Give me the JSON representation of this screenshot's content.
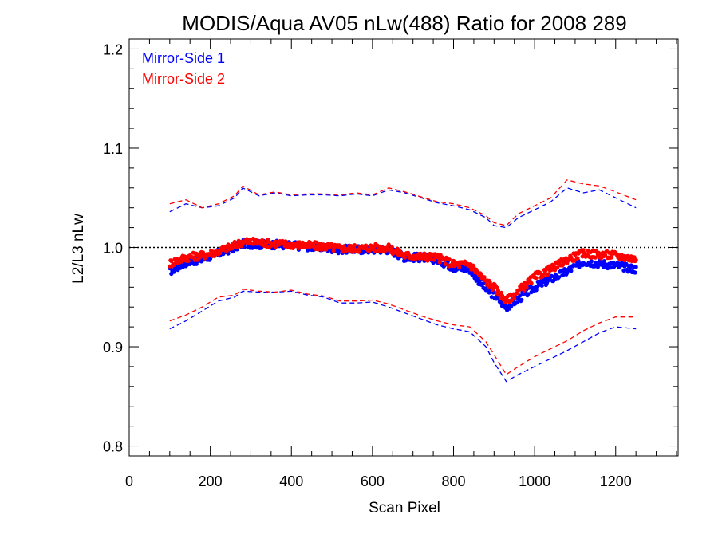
{
  "chart_data": {
    "type": "line",
    "title": "MODIS/Aqua AV05 nLw(488) Ratio for 2008 289",
    "xlabel": "Scan Pixel",
    "ylabel": "L2/L3 nLw",
    "xlim": [
      0,
      1354
    ],
    "ylim": [
      0.79,
      1.21
    ],
    "x_ticks": [
      0,
      200,
      400,
      600,
      800,
      1000,
      1200
    ],
    "y_ticks": [
      0.8,
      0.9,
      1.0,
      1.1,
      1.2
    ],
    "x_tick_labels": [
      "0",
      "200",
      "400",
      "600",
      "800",
      "1000",
      "1200"
    ],
    "y_tick_labels": [
      "0.8",
      "0.9",
      "1.0",
      "1.1",
      "1.2"
    ],
    "reference_line": {
      "y": 1.0,
      "style": "dotted",
      "color": "#000000"
    },
    "legend": {
      "position": "top-left",
      "entries": [
        "Mirror-Side 1",
        "Mirror-Side 2"
      ]
    },
    "series": [
      {
        "name": "Mirror-Side 1",
        "color": "#0000ff",
        "x": [
          100,
          140,
          180,
          220,
          260,
          280,
          320,
          360,
          400,
          440,
          480,
          520,
          560,
          600,
          640,
          680,
          720,
          760,
          800,
          840,
          880,
          900,
          930,
          960,
          1000,
          1040,
          1080,
          1120,
          1160,
          1200,
          1250
        ],
        "mean": [
          0.976,
          0.985,
          0.988,
          0.994,
          1.0,
          1.004,
          1.003,
          1.003,
          1.002,
          1.001,
          1.0,
          0.998,
          0.998,
          0.998,
          0.998,
          0.99,
          0.99,
          0.988,
          0.98,
          0.978,
          0.958,
          0.952,
          0.94,
          0.948,
          0.96,
          0.968,
          0.976,
          0.986,
          0.984,
          0.982,
          0.978
        ],
        "upper": [
          1.036,
          1.044,
          1.04,
          1.042,
          1.05,
          1.06,
          1.052,
          1.055,
          1.052,
          1.053,
          1.053,
          1.052,
          1.054,
          1.052,
          1.058,
          1.055,
          1.05,
          1.045,
          1.042,
          1.038,
          1.03,
          1.022,
          1.02,
          1.03,
          1.038,
          1.046,
          1.06,
          1.055,
          1.058,
          1.05,
          1.04
        ],
        "lower": [
          0.918,
          0.926,
          0.936,
          0.946,
          0.95,
          0.956,
          0.955,
          0.955,
          0.956,
          0.952,
          0.95,
          0.944,
          0.944,
          0.945,
          0.94,
          0.934,
          0.928,
          0.922,
          0.918,
          0.915,
          0.9,
          0.884,
          0.865,
          0.872,
          0.88,
          0.888,
          0.896,
          0.905,
          0.914,
          0.92,
          0.918
        ]
      },
      {
        "name": "Mirror-Side 2",
        "color": "#ff0000",
        "x": [
          100,
          140,
          180,
          220,
          260,
          280,
          320,
          360,
          400,
          440,
          480,
          520,
          560,
          600,
          640,
          680,
          720,
          760,
          800,
          840,
          880,
          900,
          930,
          960,
          1000,
          1040,
          1080,
          1120,
          1160,
          1200,
          1250
        ],
        "mean": [
          0.984,
          0.99,
          0.992,
          0.996,
          1.002,
          1.006,
          1.005,
          1.004,
          1.003,
          1.002,
          1.001,
          0.999,
          0.999,
          1.0,
          0.999,
          0.992,
          0.991,
          0.99,
          0.983,
          0.983,
          0.966,
          0.96,
          0.946,
          0.956,
          0.97,
          0.978,
          0.988,
          0.994,
          0.993,
          0.992,
          0.988
        ],
        "upper": [
          1.044,
          1.048,
          1.04,
          1.044,
          1.052,
          1.062,
          1.053,
          1.056,
          1.053,
          1.054,
          1.054,
          1.053,
          1.055,
          1.053,
          1.06,
          1.056,
          1.051,
          1.046,
          1.044,
          1.04,
          1.032,
          1.025,
          1.022,
          1.034,
          1.042,
          1.05,
          1.068,
          1.064,
          1.062,
          1.056,
          1.048
        ],
        "lower": [
          0.926,
          0.932,
          0.94,
          0.95,
          0.952,
          0.958,
          0.956,
          0.955,
          0.957,
          0.953,
          0.951,
          0.946,
          0.946,
          0.947,
          0.943,
          0.937,
          0.931,
          0.926,
          0.922,
          0.92,
          0.905,
          0.892,
          0.872,
          0.88,
          0.89,
          0.898,
          0.906,
          0.916,
          0.924,
          0.93,
          0.93
        ]
      }
    ]
  }
}
